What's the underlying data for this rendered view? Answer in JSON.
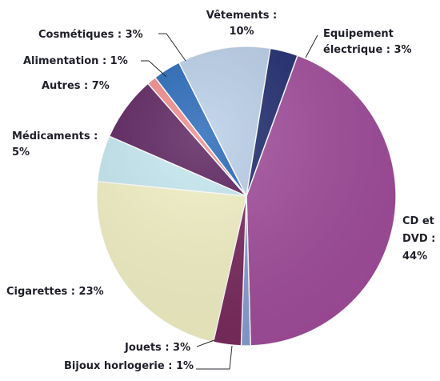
{
  "chart_data": {
    "type": "pie",
    "slices": [
      {
        "id": "cd-dvd",
        "label_lines": [
          "CD et",
          "DVD :",
          "44%"
        ],
        "value": 44,
        "color": "#a34d9c"
      },
      {
        "id": "bijoux",
        "label_lines": [
          "Bijoux horlogerie : 1%"
        ],
        "value": 1,
        "color": "#8aa0d4"
      },
      {
        "id": "jouets",
        "label_lines": [
          "Jouets : 3%"
        ],
        "value": 3,
        "color": "#7b2a5e"
      },
      {
        "id": "cigarettes",
        "label_lines": [
          "Cigarettes : 23%"
        ],
        "value": 23,
        "color": "#f5f3c6"
      },
      {
        "id": "medicaments",
        "label_lines": [
          "Médicaments :",
          "5%"
        ],
        "value": 5,
        "color": "#c6e9f2"
      },
      {
        "id": "autres",
        "label_lines": [
          "Autres : 7%"
        ],
        "value": 7,
        "color": "#5a1f5c"
      },
      {
        "id": "alimentation",
        "label_lines": [
          "Alimentation : 1%"
        ],
        "value": 1,
        "color": "#f08a8a"
      },
      {
        "id": "cosmetiques",
        "label_lines": [
          "Cosmétiques : 3%"
        ],
        "value": 3,
        "color": "#2466b8"
      },
      {
        "id": "vetements",
        "label_lines": [
          "Vêtements :",
          "10%"
        ],
        "value": 10,
        "color": "#b9cfe8"
      },
      {
        "id": "equipement",
        "label_lines": [
          "Equipement",
          "électrique : 3%"
        ],
        "value": 3,
        "color": "#1e2a6e"
      }
    ],
    "legend": "none"
  }
}
